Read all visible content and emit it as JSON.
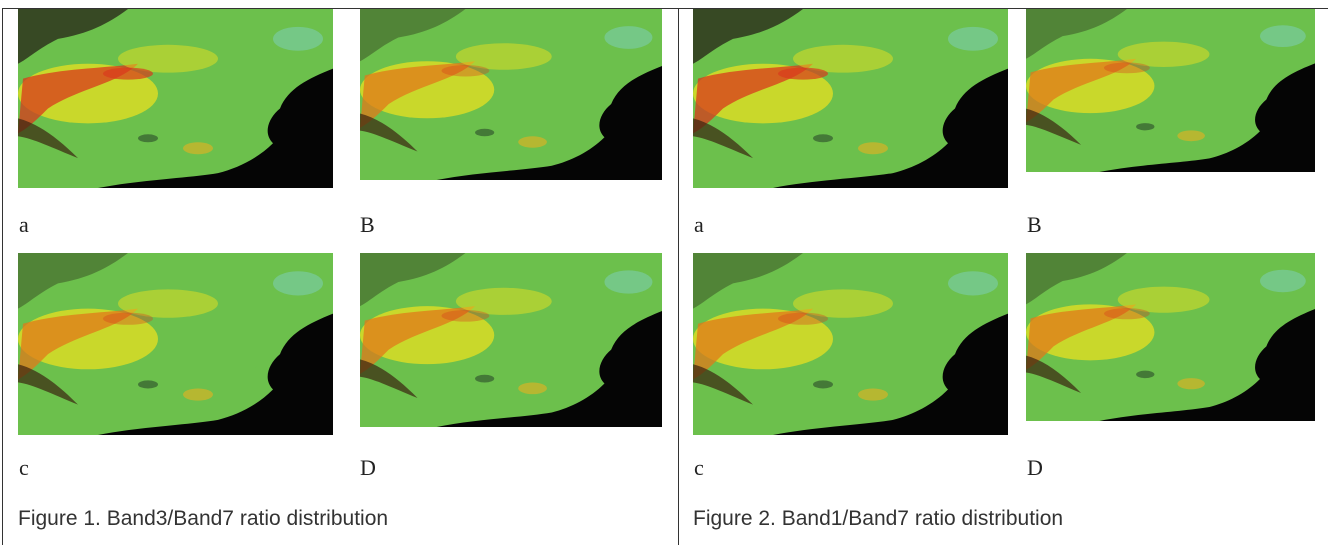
{
  "figures": [
    {
      "caption": "Figure 1. Band3/Band7 ratio distribution",
      "panels": [
        {
          "label": "a"
        },
        {
          "label": "B"
        },
        {
          "label": "c"
        },
        {
          "label": "D"
        }
      ]
    },
    {
      "caption": "Figure 2. Band1/Band7 ratio distribution",
      "panels": [
        {
          "label": "a"
        },
        {
          "label": "B"
        },
        {
          "label": "c"
        },
        {
          "label": "D"
        }
      ]
    }
  ]
}
